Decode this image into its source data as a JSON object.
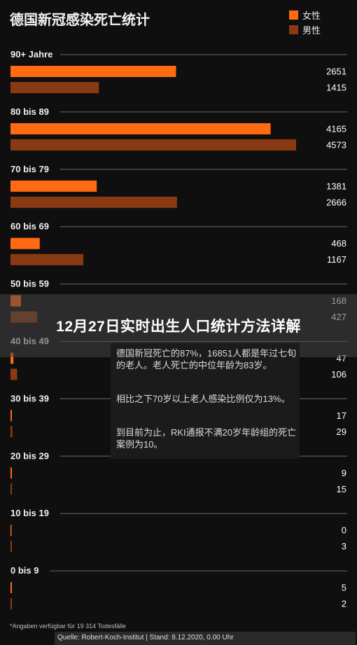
{
  "chart_data": {
    "type": "bar",
    "orientation": "horizontal",
    "title": "德国新冠感染死亡统计",
    "categories": [
      "90+ Jahre",
      "80 bis 89",
      "70 bis 79",
      "60 bis 69",
      "50 bis 59",
      "40 bis 49",
      "30 bis 39",
      "20 bis 29",
      "10 bis 19",
      "0 bis 9"
    ],
    "series": [
      {
        "name": "女性",
        "color": "#ff6a13",
        "values": [
          2651,
          4165,
          1381,
          468,
          168,
          47,
          17,
          9,
          0,
          5
        ]
      },
      {
        "name": "男性",
        "color": "#8a3a12",
        "values": [
          1415,
          4573,
          2666,
          1167,
          427,
          106,
          29,
          15,
          3,
          2
        ]
      }
    ],
    "xlim": [
      0,
      5100
    ],
    "legend_position": "top-right"
  },
  "overlay": {
    "headline": "12月27日实时出生人口统计方法详解",
    "lines": [
      "德国新冠死亡的87%，16851人都是年过七旬的老人。老人死亡的中位年龄为83岁。",
      "相比之下70岁以上老人感染比例仅为13%。",
      "到目前为止，RKI通报不满20岁年龄组的死亡案例为10。"
    ]
  },
  "footer": {
    "footnote": "*Angaben verfügbar für 19 314 Todesfälle",
    "source": "Quelle: Robert-Koch-Institut | Stand: 8.12.2020, 0.00 Uhr"
  }
}
